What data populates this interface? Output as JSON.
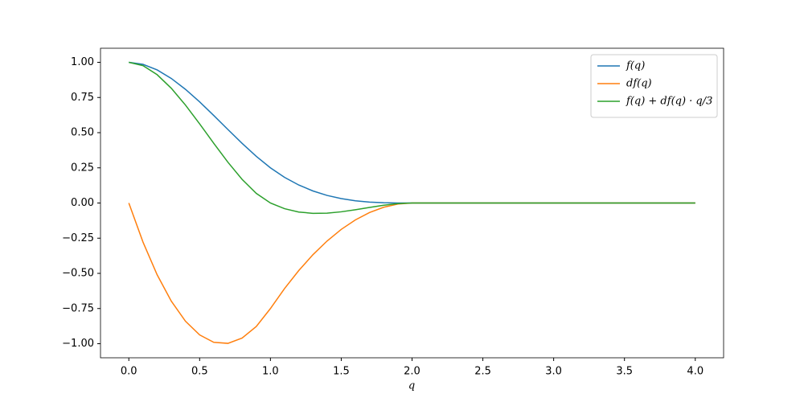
{
  "chart_data": {
    "type": "line",
    "x_label": "q",
    "x": [
      0,
      0.1,
      0.2,
      0.3,
      0.4,
      0.5,
      0.6,
      0.7,
      0.8,
      0.9,
      1.0,
      1.1,
      1.2,
      1.3,
      1.4,
      1.5,
      1.6,
      1.7,
      1.8,
      1.9,
      2.0,
      4.0
    ],
    "series": [
      {
        "name": "f(q)",
        "color": "#1f77b4",
        "values": [
          1,
          0.98575,
          0.946,
          0.88525,
          0.808,
          0.71875,
          0.622,
          0.52225,
          0.424,
          0.33175,
          0.25,
          0.18225,
          0.128,
          0.08575,
          0.054,
          0.03125,
          0.016,
          0.00675,
          0.002,
          0.00025,
          0,
          0
        ]
      },
      {
        "name": "df(q)",
        "color": "#ff7f0e",
        "values": [
          0,
          -0.2775,
          -0.51,
          -0.6975,
          -0.84,
          -0.9375,
          -0.99,
          -0.9975,
          -0.96,
          -0.8775,
          -0.75,
          -0.6075,
          -0.48,
          -0.3675,
          -0.27,
          -0.1875,
          -0.12,
          -0.0675,
          -0.03,
          -0.0075,
          0,
          0
        ]
      },
      {
        "name": "f(q) + df(q) · q/3",
        "color": "#2ca02c",
        "values": [
          1,
          0.9765,
          0.912,
          0.8155,
          0.696,
          0.5625,
          0.424,
          0.2895,
          0.168,
          0.0685,
          0,
          -0.0405,
          -0.064,
          -0.0735,
          -0.072,
          -0.0625,
          -0.048,
          -0.0315,
          -0.016,
          -0.0045,
          0,
          0
        ]
      }
    ],
    "xlim": [
      -0.2,
      4.2
    ],
    "ylim": [
      -1.1,
      1.1
    ],
    "xticks": [
      {
        "value": 0,
        "label": "0.0"
      },
      0.5,
      {
        "value": 1,
        "label": "1.0"
      },
      1.5,
      {
        "value": 2,
        "label": "2.0"
      },
      2.5,
      {
        "value": 3,
        "label": "3.0"
      },
      3.5,
      {
        "value": 4,
        "label": "4.0"
      }
    ],
    "yticks": [
      {
        "value": 1,
        "label": "1.00"
      },
      {
        "value": 0.75,
        "label": "0.75"
      },
      {
        "value": 0.5,
        "label": "0.50"
      },
      {
        "value": 0.25,
        "label": "0.25"
      },
      {
        "value": 0,
        "label": "0.00"
      },
      {
        "value": -0.25,
        "label": "−0.25"
      },
      {
        "value": -0.5,
        "label": "−0.50"
      },
      {
        "value": -0.75,
        "label": "−0.75"
      },
      {
        "value": -1,
        "label": "−1.00"
      }
    ],
    "legend": "upper right",
    "grid": false
  }
}
